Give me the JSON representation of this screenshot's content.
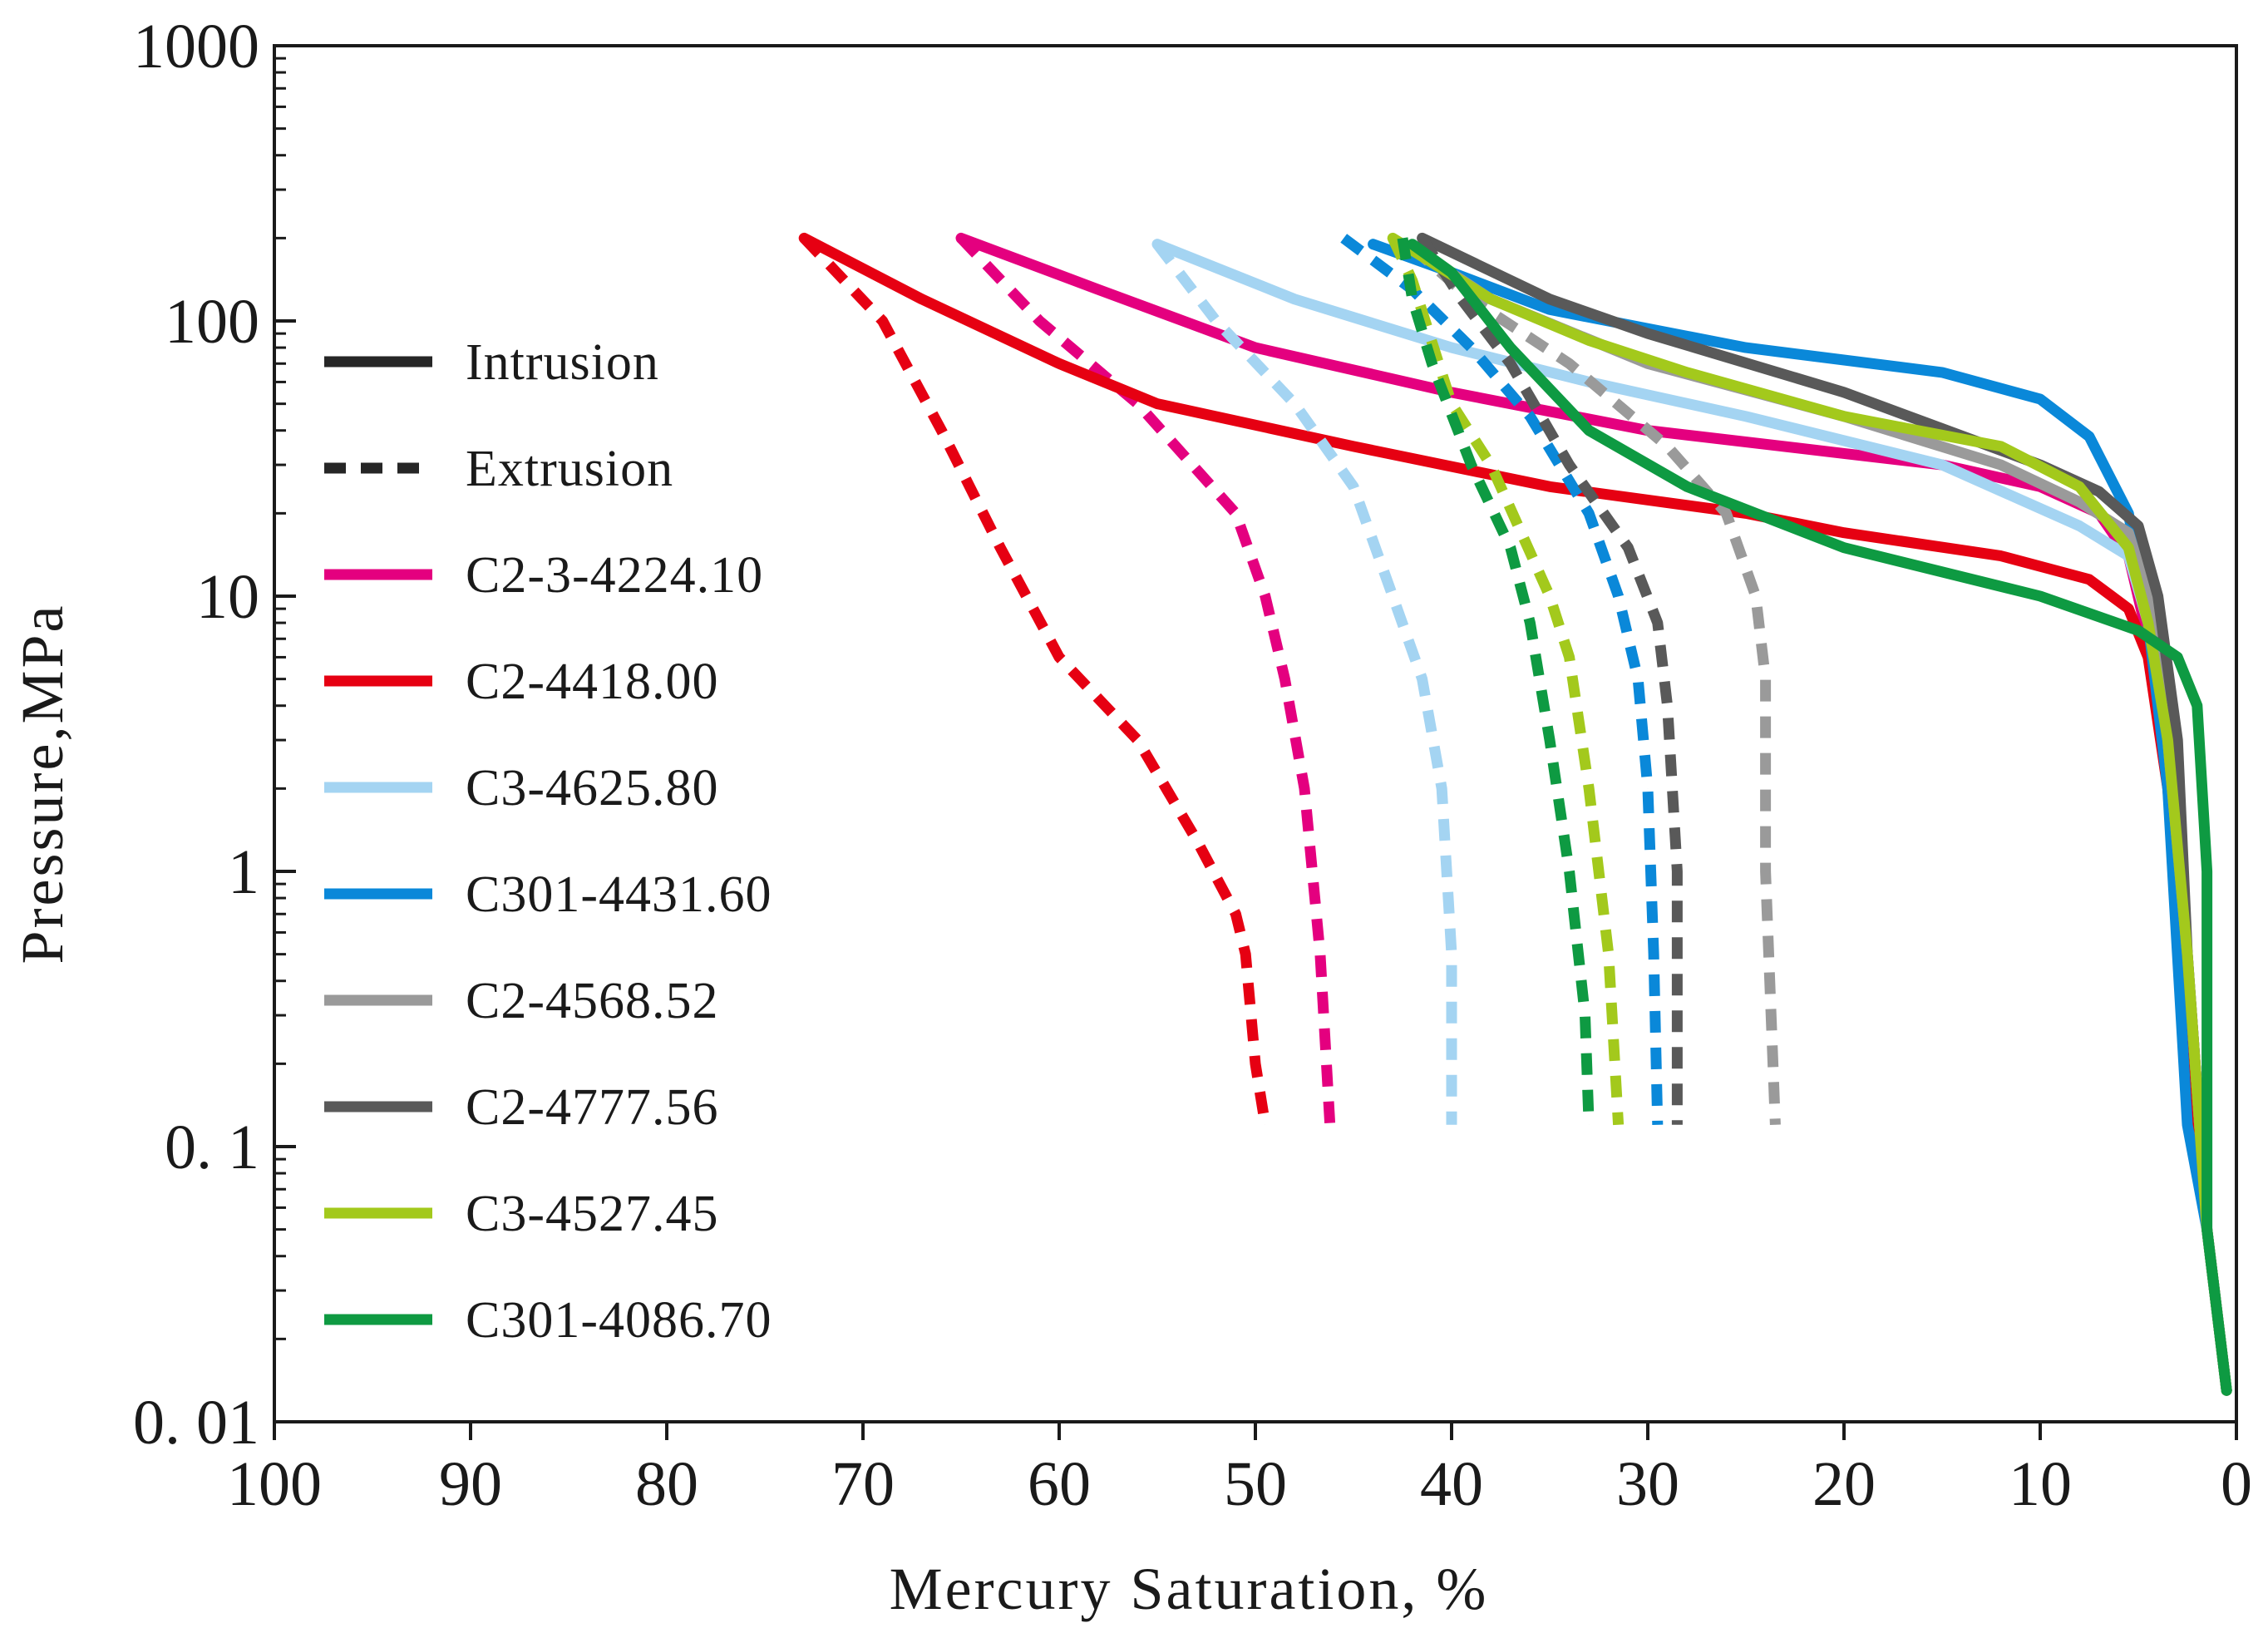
{
  "chart_data": {
    "type": "line",
    "title": "",
    "xlabel": "Mercury  Saturation, %",
    "ylabel": "Pressure,MPa",
    "x_reversed": true,
    "xlim": [
      100,
      0
    ],
    "ylim": [
      0.01,
      1000
    ],
    "yscale": "log",
    "x_ticks": [
      100,
      90,
      80,
      70,
      60,
      50,
      40,
      30,
      20,
      10,
      0
    ],
    "x_tick_labels": [
      "100",
      "90",
      "80",
      "70",
      "60",
      "50",
      "40",
      "30",
      "20",
      "10",
      "0"
    ],
    "y_ticks": [
      1000,
      100,
      10,
      1,
      0.1,
      0.01
    ],
    "y_tick_labels": [
      "1000",
      "100",
      "10",
      "1",
      "0. 1",
      "0. 01"
    ],
    "legend_position": "left-middle",
    "style_legend": [
      {
        "label": "Intrusion",
        "style": "solid",
        "color": "#262626"
      },
      {
        "label": "Extrusion",
        "style": "dashed",
        "color": "#262626"
      }
    ],
    "series": [
      {
        "name": "C2-3-4224.10",
        "color": "#e4007f",
        "intrusion": [
          [
            0.5,
            0.013
          ],
          [
            1.5,
            0.05
          ],
          [
            2.5,
            0.5
          ],
          [
            3.5,
            3
          ],
          [
            4.5,
            7
          ],
          [
            5.5,
            14
          ],
          [
            7,
            20
          ],
          [
            10,
            25
          ],
          [
            15,
            30
          ],
          [
            20,
            33
          ],
          [
            30,
            40
          ],
          [
            40,
            55
          ],
          [
            50,
            80
          ],
          [
            58,
            130
          ],
          [
            65,
            200
          ]
        ],
        "extrusion": [
          [
            65,
            200
          ],
          [
            61,
            100
          ],
          [
            56,
            50
          ],
          [
            51,
            20
          ],
          [
            49.5,
            10
          ],
          [
            48.5,
            5
          ],
          [
            47.5,
            2
          ],
          [
            46.7,
            0.5
          ],
          [
            46.2,
            0.12
          ]
        ]
      },
      {
        "name": "C2-4418.00",
        "color": "#e60012",
        "intrusion": [
          [
            0.5,
            0.013
          ],
          [
            1.5,
            0.05
          ],
          [
            2.5,
            0.3
          ],
          [
            3.5,
            2
          ],
          [
            4.5,
            6
          ],
          [
            5.5,
            9
          ],
          [
            7.5,
            11.5
          ],
          [
            12,
            14
          ],
          [
            20,
            17
          ],
          [
            25,
            20
          ],
          [
            35,
            25
          ],
          [
            45,
            35
          ],
          [
            55,
            50
          ],
          [
            60,
            70
          ],
          [
            67,
            120
          ],
          [
            73,
            200
          ]
        ],
        "extrusion": [
          [
            73,
            200
          ],
          [
            69,
            100
          ],
          [
            66,
            40
          ],
          [
            63,
            15
          ],
          [
            60,
            6
          ],
          [
            56,
            3
          ],
          [
            53,
            1.3
          ],
          [
            51,
            0.7
          ],
          [
            50.5,
            0.5
          ],
          [
            50,
            0.2
          ],
          [
            49.5,
            0.12
          ]
        ]
      },
      {
        "name": "C3-4625.80",
        "color": "#a4d4f2",
        "intrusion": [
          [
            0.5,
            0.013
          ],
          [
            1.5,
            0.05
          ],
          [
            2.5,
            0.5
          ],
          [
            3.5,
            3
          ],
          [
            4.5,
            8
          ],
          [
            5.5,
            14
          ],
          [
            8,
            18
          ],
          [
            15,
            30
          ],
          [
            25,
            45
          ],
          [
            33,
            60
          ],
          [
            40,
            80
          ],
          [
            48,
            120
          ],
          [
            55,
            190
          ]
        ],
        "extrusion": [
          [
            55,
            190
          ],
          [
            52,
            100
          ],
          [
            48,
            50
          ],
          [
            45,
            25
          ],
          [
            43,
            10
          ],
          [
            41.5,
            5
          ],
          [
            40.5,
            2
          ],
          [
            40,
            0.5
          ],
          [
            40,
            0.12
          ]
        ]
      },
      {
        "name": "C301-4431.60",
        "color": "#0a88d9",
        "intrusion": [
          [
            0.5,
            0.013
          ],
          [
            1.5,
            0.05
          ],
          [
            2.5,
            0.12
          ],
          [
            3.5,
            2
          ],
          [
            4.5,
            8
          ],
          [
            5.5,
            20
          ],
          [
            7.5,
            38
          ],
          [
            10,
            52
          ],
          [
            15,
            65
          ],
          [
            25,
            80
          ],
          [
            35,
            110
          ],
          [
            40,
            150
          ],
          [
            44,
            190
          ]
        ],
        "extrusion": [
          [
            45.5,
            200
          ],
          [
            42,
            130
          ],
          [
            39,
            80
          ],
          [
            36,
            45
          ],
          [
            33,
            20
          ],
          [
            31.5,
            10
          ],
          [
            30.5,
            5
          ],
          [
            30,
            2
          ],
          [
            29.7,
            0.5
          ],
          [
            29.5,
            0.12
          ]
        ]
      },
      {
        "name": "C2-4568.52",
        "color": "#9a9a9a",
        "intrusion": [
          [
            0.5,
            0.013
          ],
          [
            1.5,
            0.05
          ],
          [
            2.5,
            0.5
          ],
          [
            3.5,
            3
          ],
          [
            4.5,
            10
          ],
          [
            5.5,
            17
          ],
          [
            8,
            22
          ],
          [
            12,
            30
          ],
          [
            20,
            45
          ],
          [
            30,
            70
          ],
          [
            38,
            120
          ],
          [
            42,
            185
          ]
        ],
        "extrusion": [
          [
            42,
            185
          ],
          [
            39,
            120
          ],
          [
            34,
            70
          ],
          [
            29,
            35
          ],
          [
            26,
            20
          ],
          [
            24.5,
            10
          ],
          [
            24,
            5
          ],
          [
            24,
            1
          ],
          [
            23.5,
            0.12
          ]
        ]
      },
      {
        "name": "C2-4777.56",
        "color": "#595959",
        "intrusion": [
          [
            0.5,
            0.013
          ],
          [
            1.5,
            0.05
          ],
          [
            2.5,
            0.5
          ],
          [
            3,
            3
          ],
          [
            4,
            10
          ],
          [
            5,
            18
          ],
          [
            7,
            24
          ],
          [
            10,
            30
          ],
          [
            20,
            55
          ],
          [
            30,
            90
          ],
          [
            35,
            120
          ],
          [
            41.5,
            200
          ]
        ],
        "extrusion": [
          [
            41.5,
            200
          ],
          [
            39.5,
            120
          ],
          [
            37,
            70
          ],
          [
            34,
            30
          ],
          [
            31,
            15
          ],
          [
            29.5,
            8
          ],
          [
            29,
            4
          ],
          [
            28.5,
            1
          ],
          [
            28.5,
            0.12
          ]
        ]
      },
      {
        "name": "C3-4527.45",
        "color": "#a3c91c",
        "intrusion": [
          [
            0.5,
            0.013
          ],
          [
            1.5,
            0.05
          ],
          [
            2.5,
            0.5
          ],
          [
            3.5,
            3
          ],
          [
            4.5,
            8
          ],
          [
            5.5,
            15
          ],
          [
            8,
            25
          ],
          [
            12,
            35
          ],
          [
            20,
            45
          ],
          [
            28,
            65
          ],
          [
            33,
            85
          ],
          [
            38,
            120
          ],
          [
            43,
            200
          ]
        ],
        "extrusion": [
          [
            43,
            200
          ],
          [
            42,
            140
          ],
          [
            40,
            50
          ],
          [
            38,
            30
          ],
          [
            35,
            10
          ],
          [
            34,
            6
          ],
          [
            33,
            2
          ],
          [
            32,
            0.5
          ],
          [
            31.5,
            0.12
          ]
        ]
      },
      {
        "name": "C301-4086.70",
        "color": "#0e9a42",
        "intrusion": [
          [
            0.5,
            0.013
          ],
          [
            1.5,
            0.05
          ],
          [
            1.5,
            1
          ],
          [
            2,
            4
          ],
          [
            3,
            6
          ],
          [
            5,
            7.5
          ],
          [
            10,
            10
          ],
          [
            20,
            15
          ],
          [
            28,
            25
          ],
          [
            33,
            40
          ],
          [
            37,
            80
          ],
          [
            40,
            150
          ],
          [
            42,
            190
          ]
        ],
        "extrusion": [
          [
            42.5,
            200
          ],
          [
            42,
            120
          ],
          [
            41,
            70
          ],
          [
            39,
            30
          ],
          [
            37,
            15
          ],
          [
            36,
            8
          ],
          [
            35,
            3
          ],
          [
            34,
            1
          ],
          [
            33.2,
            0.3
          ],
          [
            33,
            0.12
          ]
        ]
      }
    ]
  }
}
